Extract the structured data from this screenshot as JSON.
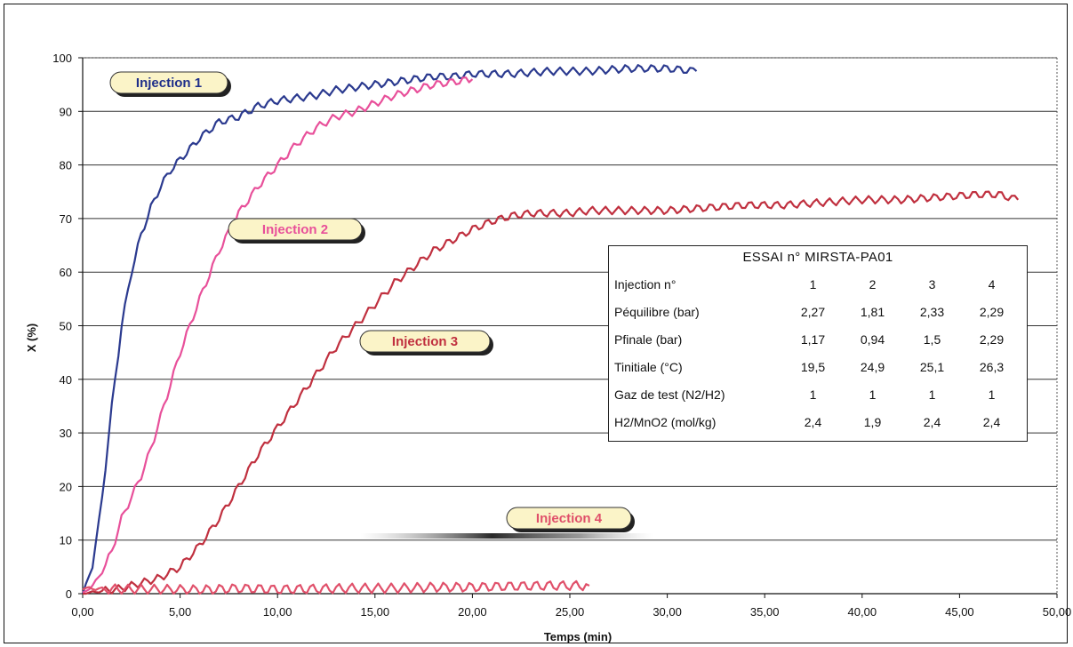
{
  "chart_data": {
    "type": "line",
    "xlabel": "Temps (min)",
    "ylabel": "X (%)",
    "xlim": [
      0,
      50
    ],
    "ylim": [
      0,
      100
    ],
    "x_ticks": [
      "0,00",
      "5,00",
      "10,00",
      "15,00",
      "20,00",
      "25,00",
      "30,00",
      "35,00",
      "40,00",
      "45,00",
      "50,00"
    ],
    "y_ticks": [
      "0",
      "10",
      "20",
      "30",
      "40",
      "50",
      "60",
      "70",
      "80",
      "90",
      "100"
    ],
    "grid": "horizontal",
    "series": [
      {
        "name": "Injection 1",
        "color": "#2b3a8f",
        "x": [
          0,
          0.5,
          1,
          1.5,
          2,
          2.5,
          3,
          3.5,
          4,
          4.5,
          5,
          6,
          7,
          8,
          9,
          10,
          11,
          12,
          13,
          14,
          15,
          16,
          17,
          18,
          19,
          20,
          22,
          24,
          26,
          28,
          30,
          31.5
        ],
        "y": [
          0,
          5,
          18,
          35,
          50,
          60,
          67,
          72,
          76,
          79,
          81,
          85,
          88,
          89,
          91,
          92,
          92.5,
          93,
          94,
          94.5,
          95,
          95.5,
          96,
          96.5,
          96.5,
          97,
          97,
          97.5,
          97.5,
          98,
          98,
          97.5
        ]
      },
      {
        "name": "Injection 2",
        "color": "#e8509a",
        "x": [
          0,
          0.5,
          1,
          1.5,
          2,
          2.5,
          3,
          3.5,
          4,
          4.5,
          5,
          5.5,
          6,
          7,
          8,
          9,
          10,
          11,
          12,
          13,
          14,
          15,
          16,
          17,
          18,
          19,
          20
        ],
        "y": [
          0,
          1.5,
          4,
          8,
          14,
          18,
          22,
          27,
          33,
          39,
          45,
          50,
          55,
          64,
          71,
          76,
          80,
          84,
          87,
          89,
          90,
          91.5,
          93,
          94,
          95,
          95.5,
          96
        ]
      },
      {
        "name": "Injection 3",
        "color": "#c0303f",
        "x": [
          0,
          1,
          2,
          3,
          4,
          5,
          6,
          7,
          8,
          9,
          10,
          11,
          12,
          13,
          14,
          15,
          16,
          17,
          18,
          19,
          20,
          21,
          22,
          23,
          24,
          25,
          26,
          27,
          28,
          30,
          32,
          34,
          36,
          38,
          40,
          42,
          44,
          46,
          47,
          48
        ],
        "y": [
          0,
          0.5,
          1,
          2,
          3,
          5,
          9,
          14,
          20,
          26,
          31,
          36,
          41,
          46,
          50,
          54,
          58,
          61,
          64,
          66,
          68,
          69.5,
          70.5,
          71,
          71,
          71,
          71.5,
          71.5,
          71.5,
          71.5,
          72,
          72.5,
          72.5,
          73,
          73.5,
          73.5,
          74,
          74.5,
          74.5,
          73.5
        ]
      },
      {
        "name": "Injection 4",
        "color": "#e0506a",
        "x": [
          0,
          2,
          4,
          6,
          8,
          10,
          12,
          14,
          16,
          18,
          20,
          22,
          24,
          26
        ],
        "y": [
          1,
          0.8,
          0.8,
          0.7,
          1,
          0.8,
          0.9,
          1,
          1,
          1.2,
          1.2,
          1.4,
          1.5,
          1.5
        ]
      }
    ],
    "callouts": [
      {
        "text": "Injection 1",
        "color": "#1f2f8a"
      },
      {
        "text": "Injection 2",
        "color": "#e8509a"
      },
      {
        "text": "Injection 3",
        "color": "#c0303f"
      },
      {
        "text": "Injection 4",
        "color": "#e0506a"
      }
    ],
    "table": {
      "title": "ESSAI n° MIRSTA-PA01",
      "rows": [
        {
          "label": "Injection n°",
          "values": [
            "1",
            "2",
            "3",
            "4"
          ]
        },
        {
          "label": "Péquilibre (bar)",
          "values": [
            "2,27",
            "1,81",
            "2,33",
            "2,29"
          ]
        },
        {
          "label": "Pfinale (bar)",
          "values": [
            "1,17",
            "0,94",
            "1,5",
            "2,29"
          ]
        },
        {
          "label": "Tinitiale (°C)",
          "values": [
            "19,5",
            "24,9",
            "25,1",
            "26,3"
          ]
        },
        {
          "label": "Gaz de test (N2/H2)",
          "values": [
            "1",
            "1",
            "1",
            "1"
          ]
        },
        {
          "label": "H2/MnO2 (mol/kg)",
          "values": [
            "2,4",
            "1,9",
            "2,4",
            "2,4"
          ]
        }
      ]
    }
  }
}
